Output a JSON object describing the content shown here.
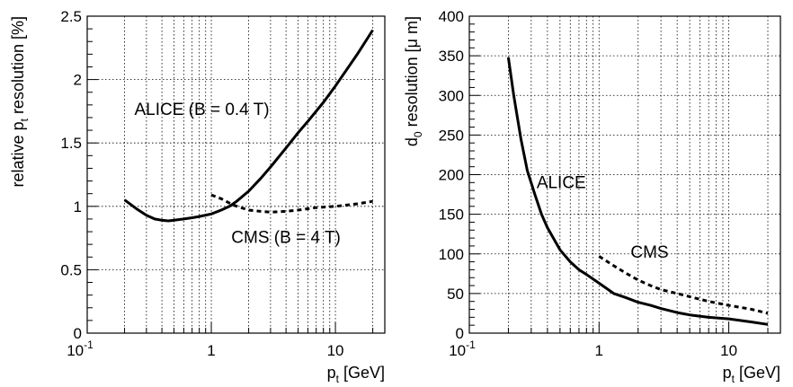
{
  "chart_data": [
    {
      "type": "line",
      "xscale": "log",
      "xlim": [
        0.1,
        25
      ],
      "ylim": [
        0,
        2.5
      ],
      "grid": true,
      "xlabel_main": "p",
      "xlabel_sub": "t",
      "xlabel_rest": " [GeV]",
      "ylabel_main": "relative p",
      "ylabel_sub": "t",
      "ylabel_rest": " resolution [%]",
      "x_ticks": [
        {
          "value": 0.1,
          "base": "10",
          "exp": "-1"
        },
        {
          "value": 1,
          "label": "1"
        },
        {
          "value": 10,
          "label": "10"
        }
      ],
      "y_ticks": [
        {
          "value": 0,
          "label": "0"
        },
        {
          "value": 0.5,
          "label": "0.5"
        },
        {
          "value": 1,
          "label": "1"
        },
        {
          "value": 1.5,
          "label": "1.5"
        },
        {
          "value": 2,
          "label": "2"
        },
        {
          "value": 2.5,
          "label": "2.5"
        }
      ],
      "series": [
        {
          "name": "ALICE (B = 0.4 T)",
          "style": "solid",
          "x": [
            0.2,
            0.25,
            0.3,
            0.35,
            0.4,
            0.45,
            0.5,
            0.6,
            0.7,
            0.8,
            1.0,
            1.2,
            1.4,
            1.6,
            2,
            2.5,
            3,
            4,
            5,
            6,
            8,
            10,
            15,
            20
          ],
          "y": [
            1.05,
            0.98,
            0.93,
            0.9,
            0.89,
            0.885,
            0.89,
            0.9,
            0.91,
            0.92,
            0.94,
            0.97,
            1.0,
            1.04,
            1.12,
            1.22,
            1.31,
            1.46,
            1.58,
            1.67,
            1.82,
            1.95,
            2.2,
            2.39
          ]
        },
        {
          "name": "CMS (B = 4 T)",
          "style": "dashed",
          "x": [
            1.0,
            1.2,
            1.5,
            2,
            2.5,
            3,
            4,
            5,
            7,
            10,
            15,
            20
          ],
          "y": [
            1.09,
            1.06,
            1.01,
            0.97,
            0.96,
            0.955,
            0.96,
            0.97,
            0.99,
            1.0,
            1.02,
            1.04
          ]
        }
      ],
      "annotations": [
        {
          "text": "ALICE (B = 0.4 T)",
          "x": 0.24,
          "y": 1.72
        },
        {
          "text": "CMS (B = 4 T)",
          "x": 1.45,
          "y": 0.71
        }
      ]
    },
    {
      "type": "line",
      "xscale": "log",
      "xlim": [
        0.1,
        25
      ],
      "ylim": [
        0,
        400
      ],
      "grid": true,
      "xlabel_main": "p",
      "xlabel_sub": "t",
      "xlabel_rest": " [GeV]",
      "ylabel_main": "d",
      "ylabel_sub": "0",
      "ylabel_rest": " resolution [μ m]",
      "x_ticks": [
        {
          "value": 0.1,
          "base": "10",
          "exp": "-1"
        },
        {
          "value": 1,
          "label": "1"
        },
        {
          "value": 10,
          "label": "10"
        }
      ],
      "y_ticks": [
        {
          "value": 0,
          "label": "0"
        },
        {
          "value": 50,
          "label": "50"
        },
        {
          "value": 100,
          "label": "100"
        },
        {
          "value": 150,
          "label": "150"
        },
        {
          "value": 200,
          "label": "200"
        },
        {
          "value": 250,
          "label": "250"
        },
        {
          "value": 300,
          "label": "300"
        },
        {
          "value": 350,
          "label": "350"
        },
        {
          "value": 400,
          "label": "400"
        }
      ],
      "series": [
        {
          "name": "ALICE",
          "style": "solid",
          "x": [
            0.2,
            0.22,
            0.25,
            0.28,
            0.32,
            0.36,
            0.4,
            0.5,
            0.6,
            0.7,
            0.8,
            1.0,
            1.3,
            1.6,
            2,
            2.5,
            3,
            4,
            5,
            7,
            10,
            15,
            20
          ],
          "y": [
            348,
            300,
            245,
            205,
            175,
            150,
            133,
            105,
            90,
            80,
            74,
            63,
            50,
            45,
            39,
            35,
            31,
            26,
            23,
            20,
            18,
            14,
            11
          ]
        },
        {
          "name": "CMS",
          "style": "dashed",
          "x": [
            1.0,
            1.3,
            1.6,
            2,
            2.5,
            3,
            4,
            5,
            7,
            10,
            15,
            20
          ],
          "y": [
            97,
            85,
            76,
            67,
            60,
            55,
            50,
            46,
            40,
            35,
            30,
            25
          ]
        }
      ],
      "annotations": [
        {
          "text": "ALICE",
          "x": 0.33,
          "y": 183
        },
        {
          "text": "CMS",
          "x": 1.75,
          "y": 95
        }
      ]
    }
  ]
}
